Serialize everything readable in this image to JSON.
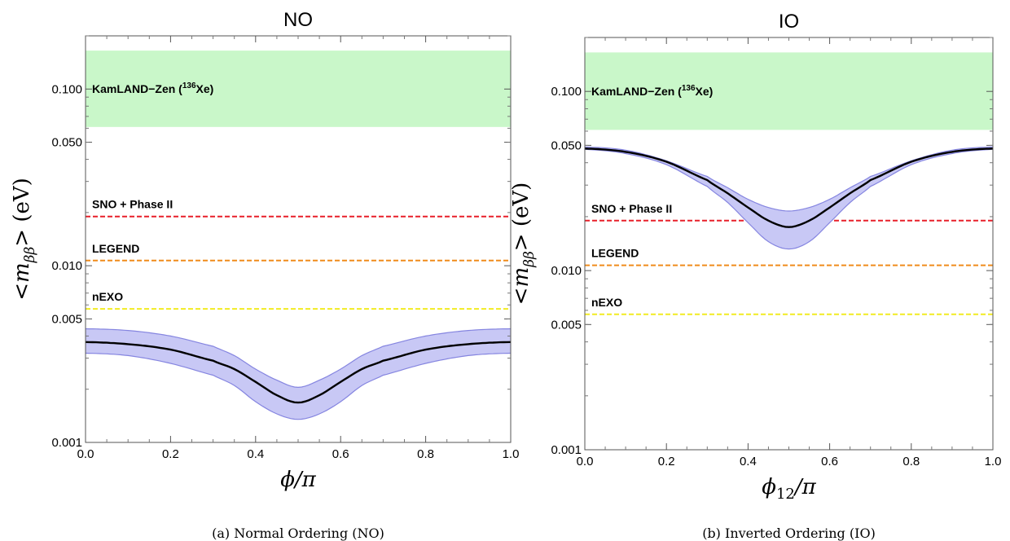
{
  "chart_data": [
    {
      "type": "line",
      "title": "NO",
      "caption": "(a) Normal Ordering (NO)",
      "xlabel": "ϕ/π",
      "ylabel": "<mββ> (eV)",
      "xlim": [
        0,
        1
      ],
      "ylim": [
        0.001,
        0.2
      ],
      "yscale": "log",
      "xticks": [
        "0.0",
        "0.2",
        "0.4",
        "0.6",
        "0.8",
        "1.0"
      ],
      "yticks": [
        "0.001",
        "0.005",
        "0.010",
        "0.050",
        "0.100"
      ],
      "curve": {
        "x": [
          0.0,
          0.1,
          0.2,
          0.3,
          0.35,
          0.4,
          0.45,
          0.5,
          0.55,
          0.6,
          0.65,
          0.7,
          0.8,
          0.9,
          1.0
        ],
        "central": [
          0.0037,
          0.0036,
          0.00335,
          0.0029,
          0.0026,
          0.0022,
          0.00185,
          0.00168,
          0.00185,
          0.0022,
          0.0026,
          0.0029,
          0.00335,
          0.0036,
          0.0037
        ],
        "band_upper": [
          0.0044,
          0.0043,
          0.004,
          0.0035,
          0.0031,
          0.0026,
          0.00225,
          0.00205,
          0.00225,
          0.0026,
          0.0031,
          0.0035,
          0.004,
          0.0043,
          0.0044
        ],
        "band_lower": [
          0.0032,
          0.0031,
          0.0028,
          0.0024,
          0.0021,
          0.0017,
          0.00145,
          0.00135,
          0.00145,
          0.0017,
          0.0021,
          0.0024,
          0.0028,
          0.0031,
          0.0032
        ]
      },
      "excluded_band": {
        "label": "KamLAND−Zen (",
        "superscript": "136",
        "label_end": "Xe)",
        "ymin": 0.061,
        "ymax": 0.165,
        "color": "#c9f7c9"
      },
      "limits": [
        {
          "label": "SNO + Phase II",
          "y": 0.019,
          "color": "#e8202a"
        },
        {
          "label": "LEGEND",
          "y": 0.0107,
          "color": "#f08c1c"
        },
        {
          "label": "nEXO",
          "y": 0.0057,
          "color": "#f2ec22"
        }
      ]
    },
    {
      "type": "line",
      "title": "IO",
      "caption": "(b) Inverted Ordering (IO)",
      "xlabel": "ϕ12/π",
      "ylabel": "<mββ> (eV)",
      "xlim": [
        0,
        1
      ],
      "ylim": [
        0.001,
        0.2
      ],
      "yscale": "log",
      "xticks": [
        "0.0",
        "0.2",
        "0.4",
        "0.6",
        "0.8",
        "1.0"
      ],
      "yticks": [
        "0.001",
        "0.005",
        "0.010",
        "0.050",
        "0.100"
      ],
      "curve": {
        "x": [
          0.0,
          0.1,
          0.2,
          0.3,
          0.35,
          0.4,
          0.45,
          0.5,
          0.55,
          0.6,
          0.65,
          0.7,
          0.8,
          0.9,
          1.0
        ],
        "central": [
          0.048,
          0.046,
          0.0405,
          0.032,
          0.027,
          0.0225,
          0.019,
          0.0175,
          0.019,
          0.0225,
          0.027,
          0.032,
          0.0405,
          0.046,
          0.048
        ],
        "band_upper": [
          0.049,
          0.047,
          0.041,
          0.0335,
          0.029,
          0.025,
          0.0225,
          0.0215,
          0.0225,
          0.025,
          0.029,
          0.0335,
          0.041,
          0.047,
          0.049
        ],
        "band_lower": [
          0.0475,
          0.045,
          0.039,
          0.0295,
          0.024,
          0.0185,
          0.0145,
          0.0132,
          0.0145,
          0.0185,
          0.024,
          0.0295,
          0.039,
          0.045,
          0.0475
        ]
      },
      "excluded_band": {
        "label": "KamLAND−Zen (",
        "superscript": "136",
        "label_end": "Xe)",
        "ymin": 0.061,
        "ymax": 0.165,
        "color": "#c9f7c9"
      },
      "limits": [
        {
          "label": "SNO + Phase II",
          "y": 0.019,
          "color": "#e8202a"
        },
        {
          "label": "LEGEND",
          "y": 0.0107,
          "color": "#f08c1c"
        },
        {
          "label": "nEXO",
          "y": 0.0057,
          "color": "#f2ec22"
        }
      ]
    }
  ],
  "colors": {
    "band_fill": "#c8c8f5",
    "band_edge": "#8585e0",
    "curve": "#000000"
  }
}
